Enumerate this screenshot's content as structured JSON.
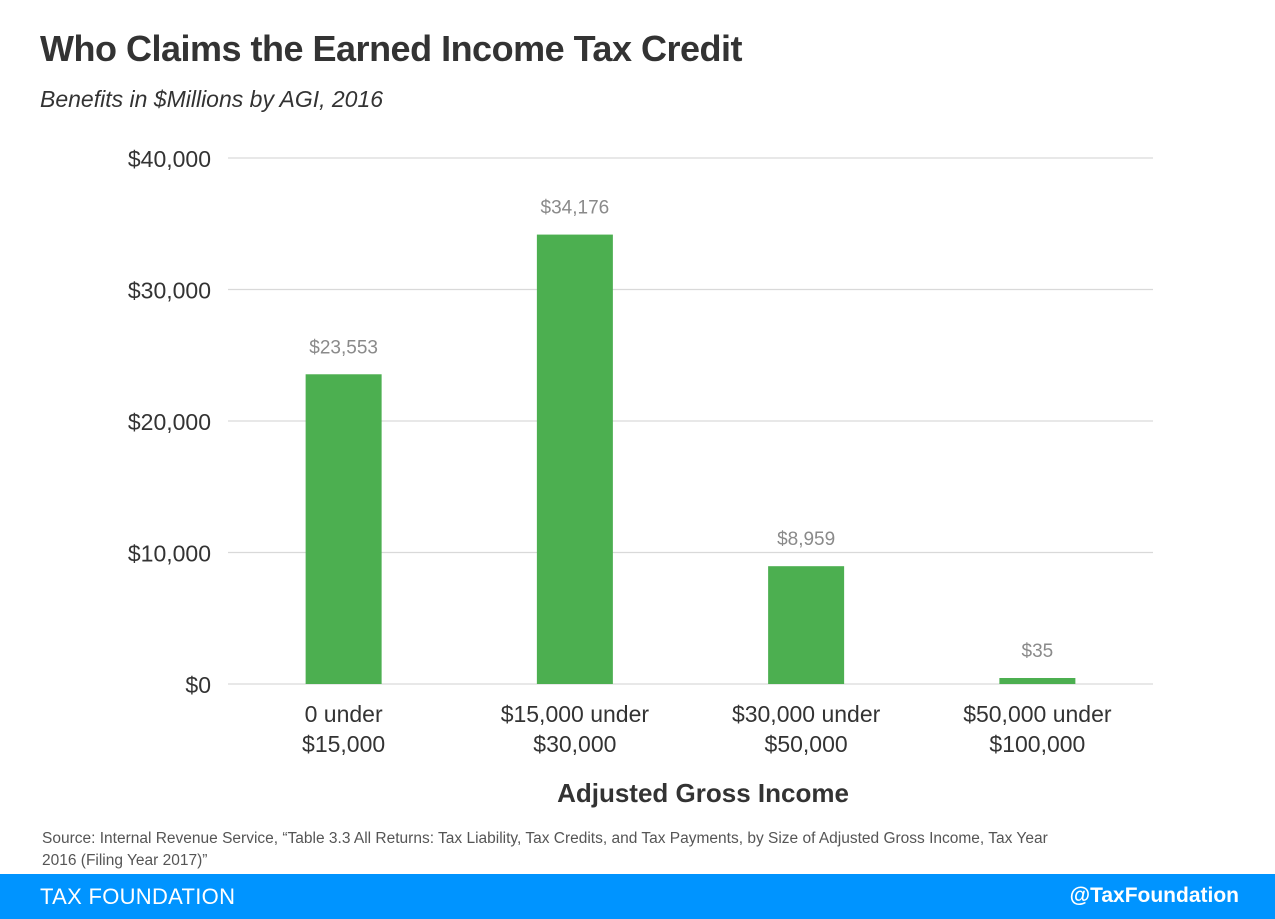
{
  "header": {
    "title": "Who Claims the Earned Income Tax Credit",
    "subtitle": "Benefits in $Millions by AGI, 2016"
  },
  "chart_data": {
    "type": "bar",
    "categories": [
      [
        "0 under",
        "$15,000"
      ],
      [
        "$15,000 under",
        "$30,000"
      ],
      [
        "$30,000 under",
        "$50,000"
      ],
      [
        "$50,000 under",
        "$100,000"
      ]
    ],
    "values": [
      23553,
      34176,
      8959,
      35
    ],
    "data_labels": [
      "$23,553",
      "$34,176",
      "$8,959",
      "$35"
    ],
    "xlabel": "Adjusted Gross Income",
    "ylabel": "",
    "ylim": [
      0,
      40000
    ],
    "yticks": [
      0,
      10000,
      20000,
      30000,
      40000
    ],
    "ytick_labels": [
      "$0",
      "$10,000",
      "$20,000",
      "$30,000",
      "$40,000"
    ],
    "grid": true,
    "legend": "none",
    "colors": {
      "bar": "#4caf50",
      "grid": "#d9d9d9",
      "data_label": "#8a8a8a",
      "tick_label": "#333333"
    }
  },
  "source": "Source: Internal Revenue Service, “Table 3.3 All Returns: Tax Liability, Tax Credits, and Tax Payments, by Size of Adjusted Gross Income, Tax Year 2016 (Filing Year 2017)”",
  "footer": {
    "brand": "TAX FOUNDATION",
    "handle": "@TaxFoundation",
    "color": "#0094ff"
  }
}
